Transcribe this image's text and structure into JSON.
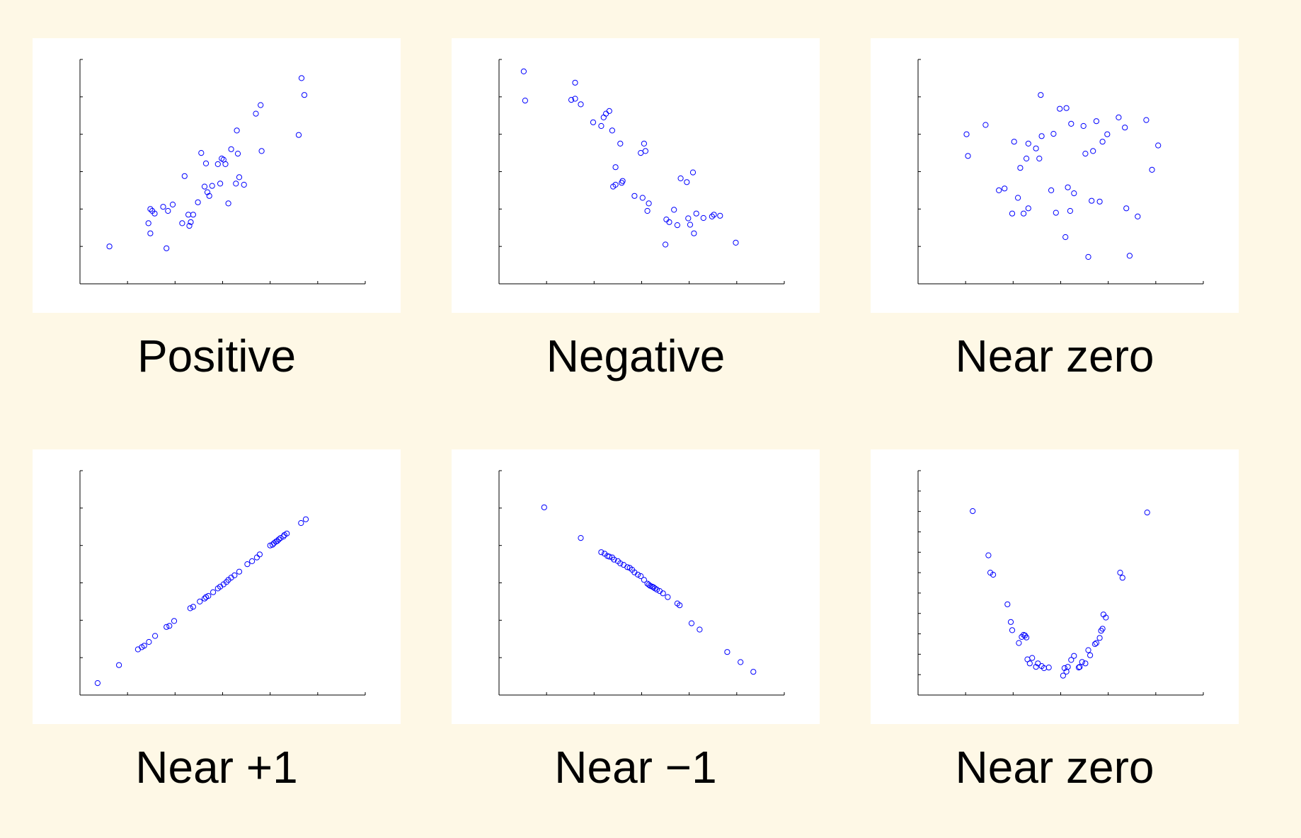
{
  "chart_data": [
    {
      "type": "scatter",
      "title": "Positive",
      "xlim": [
        0,
        6
      ],
      "ylim": [
        0,
        6
      ],
      "xticks": 6,
      "yticks": 6,
      "marker_color": "#0000ff",
      "x": [
        0.62,
        1.48,
        1.57,
        1.44,
        1.48,
        1.52,
        1.75,
        1.82,
        1.85,
        1.95,
        2.2,
        2.15,
        2.28,
        2.3,
        2.33,
        2.38,
        2.48,
        2.55,
        2.62,
        2.68,
        2.72,
        2.65,
        2.78,
        2.9,
        2.95,
        2.98,
        3.02,
        3.06,
        3.12,
        3.18,
        3.28,
        3.3,
        3.32,
        3.35,
        3.45,
        3.7,
        3.8,
        3.82,
        4.6,
        4.66,
        4.72
      ],
      "y": [
        1.0,
        2.0,
        1.88,
        1.62,
        1.35,
        1.95,
        2.06,
        0.95,
        1.95,
        2.12,
        2.88,
        1.62,
        1.85,
        1.55,
        1.65,
        1.85,
        2.18,
        3.5,
        2.6,
        2.45,
        2.35,
        3.22,
        2.62,
        3.2,
        2.68,
        3.35,
        3.32,
        3.2,
        2.15,
        3.6,
        2.68,
        4.1,
        3.48,
        2.85,
        2.65,
        4.55,
        4.78,
        3.55,
        3.98,
        5.5,
        5.05
      ]
    },
    {
      "type": "scatter",
      "title": "Negative",
      "xlim": [
        0,
        6
      ],
      "ylim": [
        0,
        6
      ],
      "xticks": 6,
      "yticks": 6,
      "marker_color": "#0000ff",
      "x": [
        0.52,
        0.55,
        1.52,
        1.6,
        1.6,
        1.72,
        1.98,
        2.15,
        2.2,
        2.25,
        2.32,
        2.38,
        2.45,
        2.45,
        2.4,
        2.58,
        2.6,
        2.55,
        2.85,
        2.98,
        3.05,
        3.08,
        3.02,
        3.12,
        3.15,
        3.5,
        3.58,
        3.52,
        3.68,
        3.75,
        3.82,
        3.95,
        3.98,
        4.08,
        4.02,
        4.1,
        4.15,
        4.3,
        4.48,
        4.52,
        4.65,
        4.98
      ],
      "y": [
        5.68,
        4.9,
        4.92,
        5.38,
        4.95,
        4.8,
        4.32,
        4.22,
        4.45,
        4.55,
        4.62,
        4.1,
        3.12,
        2.65,
        2.6,
        2.7,
        2.75,
        3.75,
        2.35,
        3.5,
        3.75,
        3.55,
        2.3,
        1.95,
        2.15,
        1.05,
        1.65,
        1.72,
        1.98,
        1.57,
        2.82,
        2.72,
        1.75,
        2.98,
        1.58,
        1.35,
        1.88,
        1.76,
        1.8,
        1.85,
        1.82,
        1.1
      ]
    },
    {
      "type": "scatter",
      "title": "Near zero",
      "xlim": [
        0,
        6
      ],
      "ylim": [
        0,
        6
      ],
      "xticks": 6,
      "yticks": 6,
      "marker_color": "#0000ff",
      "x": [
        1.02,
        1.05,
        1.42,
        1.7,
        1.82,
        1.98,
        2.02,
        2.1,
        2.15,
        2.22,
        2.28,
        2.32,
        2.32,
        2.48,
        2.55,
        2.58,
        2.6,
        2.8,
        2.85,
        2.9,
        2.98,
        3.1,
        3.12,
        3.15,
        3.2,
        3.22,
        3.28,
        3.48,
        3.52,
        3.58,
        3.65,
        3.68,
        3.75,
        3.82,
        3.88,
        3.98,
        4.22,
        4.35,
        4.38,
        4.45,
        4.62,
        4.8,
        4.92,
        5.05
      ],
      "y": [
        4.0,
        3.42,
        4.25,
        2.5,
        2.55,
        1.88,
        3.8,
        2.3,
        3.1,
        1.88,
        3.35,
        2.02,
        3.75,
        3.62,
        3.35,
        5.05,
        3.95,
        2.5,
        4.01,
        1.9,
        4.68,
        1.25,
        4.7,
        2.58,
        1.95,
        4.28,
        2.42,
        4.22,
        3.48,
        0.72,
        2.22,
        3.55,
        4.35,
        2.2,
        3.8,
        4.0,
        4.45,
        4.18,
        2.02,
        0.75,
        1.8,
        4.38,
        3.05,
        3.7
      ]
    },
    {
      "type": "scatter",
      "title": "Near +1",
      "xlim": [
        0,
        6
      ],
      "ylim": [
        0,
        6
      ],
      "xticks": 6,
      "yticks": 6,
      "marker_color": "#0000ff",
      "x": [
        0.37,
        0.82,
        1.22,
        1.3,
        1.35,
        1.45,
        1.58,
        1.82,
        1.88,
        1.98,
        2.32,
        2.38,
        2.52,
        2.62,
        2.65,
        2.7,
        2.8,
        2.9,
        2.95,
        3.02,
        3.08,
        3.12,
        3.18,
        3.25,
        3.35,
        3.52,
        3.62,
        3.72,
        3.78,
        4.0,
        4.05,
        4.08,
        4.12,
        4.15,
        4.18,
        4.22,
        4.28,
        4.3,
        4.35,
        4.65,
        4.75
      ],
      "y": [
        0.32,
        0.8,
        1.22,
        1.28,
        1.32,
        1.42,
        1.58,
        1.82,
        1.85,
        1.98,
        2.32,
        2.36,
        2.5,
        2.58,
        2.62,
        2.65,
        2.75,
        2.85,
        2.9,
        2.96,
        3.02,
        3.08,
        3.14,
        3.2,
        3.3,
        3.5,
        3.58,
        3.68,
        3.76,
        4.0,
        4.02,
        4.06,
        4.1,
        4.12,
        4.16,
        4.2,
        4.24,
        4.28,
        4.32,
        4.6,
        4.7
      ]
    },
    {
      "type": "scatter",
      "title": "Near −1",
      "xlim": [
        0,
        6
      ],
      "ylim": [
        0,
        6
      ],
      "xticks": 6,
      "yticks": 6,
      "marker_color": "#0000ff",
      "x": [
        0.95,
        1.72,
        2.15,
        2.22,
        2.28,
        2.32,
        2.38,
        2.42,
        2.5,
        2.55,
        2.62,
        2.7,
        2.75,
        2.8,
        2.85,
        2.92,
        2.98,
        3.05,
        3.12,
        3.15,
        3.18,
        3.22,
        3.25,
        3.28,
        3.32,
        3.38,
        3.45,
        3.55,
        3.75,
        3.8,
        4.05,
        4.22,
        4.8,
        5.08,
        5.35
      ],
      "y": [
        5.02,
        4.2,
        3.82,
        3.78,
        3.72,
        3.7,
        3.68,
        3.62,
        3.58,
        3.52,
        3.48,
        3.42,
        3.4,
        3.35,
        3.28,
        3.22,
        3.18,
        3.08,
        2.98,
        2.95,
        2.92,
        2.9,
        2.88,
        2.85,
        2.82,
        2.78,
        2.72,
        2.62,
        2.45,
        2.4,
        1.92,
        1.75,
        1.15,
        0.88,
        0.62
      ]
    },
    {
      "type": "scatter",
      "title": "Near zero",
      "xlim": [
        0,
        6
      ],
      "ylim": [
        0,
        11
      ],
      "xticks": 6,
      "yticks": 11,
      "marker_color": "#0000ff",
      "x": [
        1.15,
        1.48,
        1.52,
        1.58,
        1.88,
        1.95,
        1.98,
        2.12,
        2.18,
        2.22,
        2.25,
        2.28,
        2.3,
        2.35,
        2.4,
        2.48,
        2.52,
        2.6,
        2.65,
        2.75,
        3.05,
        3.08,
        3.12,
        3.15,
        3.22,
        3.28,
        3.38,
        3.4,
        3.45,
        3.52,
        3.58,
        3.62,
        3.72,
        3.75,
        3.82,
        3.85,
        3.88,
        3.9,
        3.95,
        4.25,
        4.3,
        4.82
      ],
      "y": [
        9.02,
        6.85,
        6.0,
        5.9,
        4.45,
        3.58,
        3.18,
        2.55,
        2.85,
        2.95,
        2.92,
        2.82,
        1.75,
        1.55,
        1.82,
        1.38,
        1.55,
        1.42,
        1.32,
        1.35,
        0.95,
        1.32,
        1.15,
        1.38,
        1.72,
        1.92,
        1.35,
        1.38,
        1.62,
        1.55,
        2.2,
        1.95,
        2.5,
        2.55,
        2.8,
        3.15,
        3.25,
        3.95,
        3.8,
        6.0,
        5.75,
        8.95
      ]
    }
  ]
}
